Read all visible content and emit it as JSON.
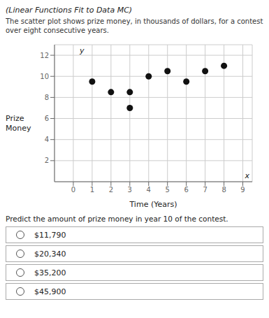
{
  "chart_data": {
    "type": "scatter",
    "title": "(Linear Functions Fit to Data MC)",
    "subtitle": "The scatter plot shows prize money, in thousands of dollars, for a contest over eight consecutive years.",
    "x": [
      1,
      2,
      3,
      3,
      4,
      5,
      6,
      7,
      8
    ],
    "values": [
      9.5,
      8.5,
      8.5,
      7.0,
      10.0,
      10.5,
      9.5,
      10.5,
      11.0
    ],
    "xlabel": "Time (Years)",
    "ylabel": "Prize Money",
    "annotations": [
      "x",
      "y"
    ],
    "xlim": [
      -1,
      9.5
    ],
    "ylim": [
      0,
      13
    ],
    "xticks": [
      0,
      1,
      2,
      3,
      4,
      5,
      6,
      7,
      8,
      9
    ],
    "yticks": [
      2,
      4,
      6,
      8,
      10,
      12
    ],
    "color": "#111111",
    "grid": true,
    "question": "Predict the amount of prize money in year 10 of the contest.",
    "choices": [
      "$11,790",
      "$20,340",
      "$35,200",
      "$45,900"
    ]
  }
}
